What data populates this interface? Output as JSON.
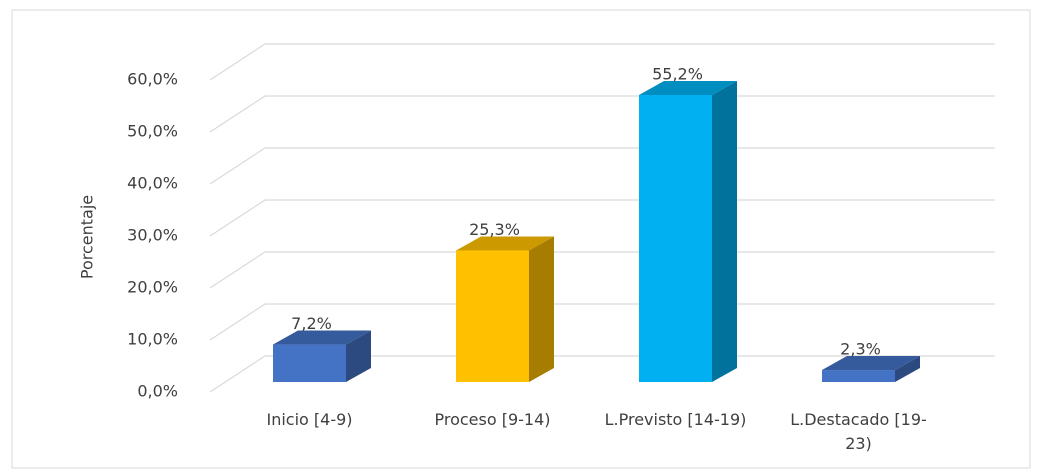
{
  "chart_data": {
    "type": "bar3d",
    "y_axis_label": "Porcentaje",
    "categories": [
      "Inicio [4-9)",
      "Proceso [9-14)",
      "L.Previsto [14-19)",
      "L.Destacado [19-23)"
    ],
    "values": [
      7.2,
      25.3,
      55.2,
      2.3
    ],
    "value_labels": [
      "7,2%",
      "25,3%",
      "55,2%",
      "2,3%"
    ],
    "colors": [
      "#4472c4",
      "#ffc000",
      "#00b0f0",
      "#4472c4"
    ],
    "ylim": [
      0,
      60
    ],
    "yticks": [
      {
        "value": 0,
        "label": "0,0%"
      },
      {
        "value": 10,
        "label": "10,0%"
      },
      {
        "value": 20,
        "label": "20,0%"
      },
      {
        "value": 30,
        "label": "30,0%"
      },
      {
        "value": 40,
        "label": "40,0%"
      },
      {
        "value": 50,
        "label": "50,0%"
      },
      {
        "value": 60,
        "label": "60,0%"
      }
    ],
    "grid": true
  }
}
